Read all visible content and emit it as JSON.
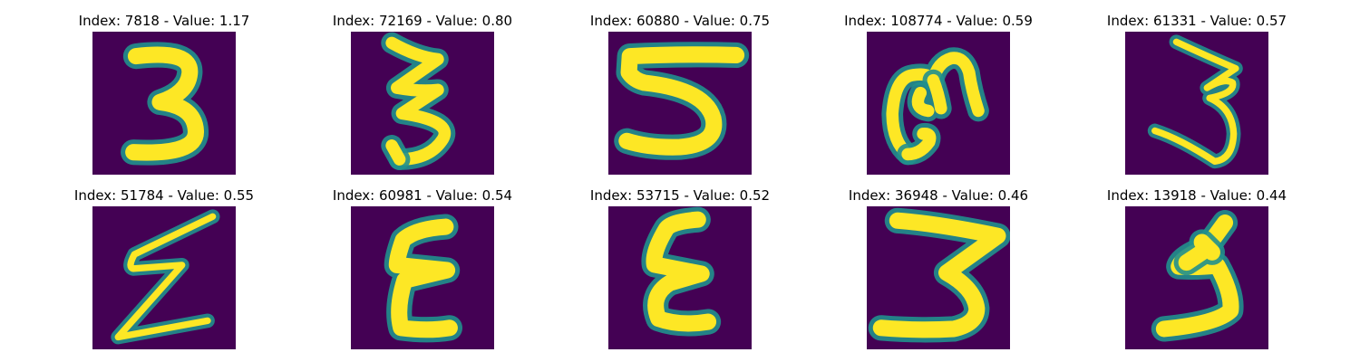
{
  "panels": [
    {
      "title": "Index: 7818 - Value: 1.17",
      "index": 7818,
      "value": 1.17,
      "digit_icon": "digit-3-icon"
    },
    {
      "title": "Index: 72169 - Value: 0.80",
      "index": 72169,
      "value": 0.8,
      "digit_icon": "digit-3-icon"
    },
    {
      "title": "Index: 60880 - Value: 0.75",
      "index": 60880,
      "value": 0.75,
      "digit_icon": "digit-5-icon"
    },
    {
      "title": "Index: 108774 - Value: 0.59",
      "index": 108774,
      "value": 0.59,
      "digit_icon": "digit-3-rotated-icon"
    },
    {
      "title": "Index: 61331 - Value: 0.57",
      "index": 61331,
      "value": 0.57,
      "digit_icon": "digit-3-icon"
    },
    {
      "title": "Index: 51784 - Value: 0.55",
      "index": 51784,
      "value": 0.55,
      "digit_icon": "digit-z-icon"
    },
    {
      "title": "Index: 60981 - Value: 0.54",
      "index": 60981,
      "value": 0.54,
      "digit_icon": "digit-e-icon"
    },
    {
      "title": "Index: 53715 - Value: 0.52",
      "index": 53715,
      "value": 0.52,
      "digit_icon": "digit-e-icon"
    },
    {
      "title": "Index: 36948 - Value: 0.46",
      "index": 36948,
      "value": 0.46,
      "digit_icon": "digit-3-icon"
    },
    {
      "title": "Index: 13918 - Value: 0.44",
      "index": 13918,
      "value": 0.44,
      "digit_icon": "digit-3-icon"
    }
  ],
  "colors": {
    "background": "#440154",
    "edge": "#21908d",
    "stroke": "#fde725"
  }
}
